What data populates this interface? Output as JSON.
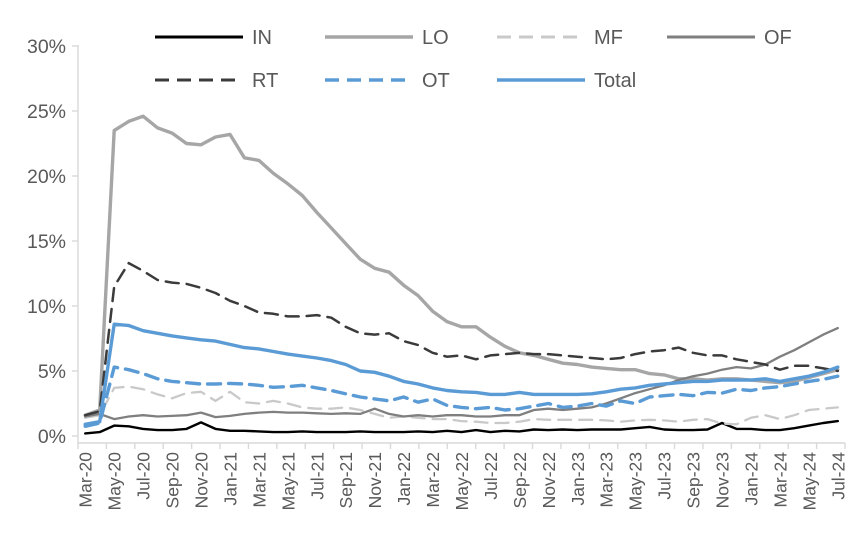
{
  "chart_data": {
    "type": "line",
    "title": "",
    "xlabel": "",
    "ylabel": "",
    "ylim": [
      0,
      30
    ],
    "grid": false,
    "legend_position": "top",
    "axis_color": "#d9d9d9",
    "label_color": "#595959",
    "y_ticks": [
      "0%",
      "5%",
      "10%",
      "15%",
      "20%",
      "25%",
      "30%"
    ],
    "y_tick_values": [
      0,
      5,
      10,
      15,
      20,
      25,
      30
    ],
    "x": [
      "Mar-20",
      "Apr-20",
      "May-20",
      "Jun-20",
      "Jul-20",
      "Aug-20",
      "Sep-20",
      "Oct-20",
      "Nov-20",
      "Dec-20",
      "Jan-21",
      "Feb-21",
      "Mar-21",
      "Apr-21",
      "May-21",
      "Jun-21",
      "Jul-21",
      "Aug-21",
      "Sep-21",
      "Oct-21",
      "Nov-21",
      "Dec-21",
      "Jan-22",
      "Feb-22",
      "Mar-22",
      "Apr-22",
      "May-22",
      "Jun-22",
      "Jul-22",
      "Aug-22",
      "Sep-22",
      "Oct-22",
      "Nov-22",
      "Dec-22",
      "Jan-23",
      "Feb-23",
      "Mar-23",
      "Apr-23",
      "May-23",
      "Jun-23",
      "Jul-23",
      "Aug-23",
      "Sep-23",
      "Oct-23",
      "Nov-23",
      "Dec-23",
      "Jan-24",
      "Feb-24",
      "Mar-24",
      "Apr-24",
      "May-24",
      "Jun-24",
      "Jul-24"
    ],
    "x_axis_labeled_ticks": [
      "Mar-20",
      "May-20",
      "Jul-20",
      "Sep-20",
      "Nov-20",
      "Jan-21",
      "Mar-21",
      "May-21",
      "Jul-21",
      "Sep-21",
      "Nov-21",
      "Jan-22",
      "Mar-22",
      "May-22",
      "Jul-22",
      "Sep-22",
      "Nov-22",
      "Jan-23",
      "Mar-23",
      "May-23",
      "Jul-23",
      "Sep-23",
      "Nov-23",
      "Jan-24",
      "Mar-24",
      "May-24",
      "Jul-24"
    ],
    "series": [
      {
        "name": "IN",
        "color": "#000000",
        "style": "solid",
        "width": 2.4,
        "values": [
          0.2,
          0.3,
          0.8,
          0.75,
          0.55,
          0.45,
          0.45,
          0.55,
          1.05,
          0.55,
          0.4,
          0.4,
          0.35,
          0.3,
          0.3,
          0.35,
          0.3,
          0.3,
          0.3,
          0.35,
          0.3,
          0.3,
          0.3,
          0.35,
          0.3,
          0.4,
          0.3,
          0.45,
          0.3,
          0.4,
          0.35,
          0.5,
          0.45,
          0.5,
          0.45,
          0.5,
          0.5,
          0.5,
          0.6,
          0.7,
          0.5,
          0.45,
          0.45,
          0.5,
          1.0,
          0.55,
          0.55,
          0.45,
          0.45,
          0.6,
          0.8,
          1.0,
          1.15
        ]
      },
      {
        "name": "LO",
        "color": "#a6a6a6",
        "style": "solid",
        "width": 3.4,
        "values": [
          1.6,
          2.0,
          23.5,
          24.2,
          24.6,
          23.7,
          23.3,
          22.5,
          22.4,
          23.0,
          23.2,
          21.4,
          21.2,
          20.2,
          19.4,
          18.5,
          17.2,
          16.0,
          14.8,
          13.6,
          12.9,
          12.6,
          11.6,
          10.8,
          9.6,
          8.8,
          8.4,
          8.4,
          7.6,
          6.9,
          6.4,
          6.2,
          5.9,
          5.6,
          5.5,
          5.3,
          5.2,
          5.1,
          5.1,
          4.8,
          4.7,
          4.4,
          4.4,
          4.3,
          4.4,
          4.4,
          4.3,
          4.2,
          4.1,
          4.2,
          4.5,
          4.8,
          5.1
        ]
      },
      {
        "name": "MF",
        "color": "#c9c9c9",
        "style": "dashed",
        "width": 2.3,
        "values": [
          1.4,
          1.6,
          3.7,
          3.8,
          3.6,
          3.2,
          2.9,
          3.3,
          3.4,
          2.7,
          3.4,
          2.6,
          2.5,
          2.7,
          2.5,
          2.2,
          2.1,
          2.1,
          2.2,
          2.0,
          1.7,
          1.4,
          1.5,
          1.4,
          1.3,
          1.3,
          1.15,
          1.1,
          1.0,
          1.0,
          1.1,
          1.3,
          1.25,
          1.25,
          1.25,
          1.25,
          1.2,
          1.1,
          1.2,
          1.25,
          1.2,
          1.1,
          1.25,
          1.3,
          0.95,
          0.9,
          1.4,
          1.6,
          1.3,
          1.6,
          2.0,
          2.1,
          2.2
        ]
      },
      {
        "name": "OF",
        "color": "#7f7f7f",
        "style": "solid",
        "width": 2.3,
        "values": [
          1.5,
          1.7,
          1.3,
          1.5,
          1.6,
          1.5,
          1.55,
          1.6,
          1.8,
          1.45,
          1.55,
          1.7,
          1.8,
          1.85,
          1.8,
          1.8,
          1.75,
          1.7,
          1.75,
          1.7,
          2.1,
          1.7,
          1.5,
          1.6,
          1.5,
          1.6,
          1.6,
          1.5,
          1.5,
          1.6,
          1.6,
          2.0,
          2.1,
          2.0,
          2.1,
          2.2,
          2.5,
          2.9,
          3.3,
          3.6,
          3.9,
          4.3,
          4.6,
          4.8,
          5.1,
          5.3,
          5.2,
          5.5,
          6.1,
          6.6,
          7.2,
          7.8,
          8.3
        ]
      },
      {
        "name": "RT",
        "color": "#3b3b3b",
        "style": "dashed",
        "width": 2.5,
        "values": [
          1.6,
          1.9,
          11.5,
          13.3,
          12.7,
          12.0,
          11.8,
          11.7,
          11.4,
          11.0,
          10.4,
          10.0,
          9.5,
          9.4,
          9.2,
          9.2,
          9.3,
          9.1,
          8.4,
          7.9,
          7.8,
          7.9,
          7.3,
          7.0,
          6.4,
          6.1,
          6.2,
          5.9,
          6.2,
          6.3,
          6.4,
          6.3,
          6.3,
          6.2,
          6.1,
          6.0,
          5.9,
          6.0,
          6.3,
          6.5,
          6.6,
          6.8,
          6.4,
          6.2,
          6.2,
          5.9,
          5.7,
          5.5,
          5.1,
          5.4,
          5.4,
          5.2,
          5.0
        ]
      },
      {
        "name": "OT",
        "color": "#5b9bd5",
        "style": "dashed",
        "width": 3.4,
        "values": [
          0.75,
          1.0,
          5.3,
          5.1,
          4.8,
          4.4,
          4.2,
          4.1,
          4.0,
          4.0,
          4.05,
          4.0,
          3.9,
          3.75,
          3.8,
          3.9,
          3.7,
          3.5,
          3.25,
          3.0,
          2.85,
          2.7,
          3.0,
          2.6,
          2.85,
          2.35,
          2.2,
          2.1,
          2.2,
          2.0,
          2.1,
          2.3,
          2.5,
          2.2,
          2.3,
          2.5,
          2.3,
          2.7,
          2.5,
          3.0,
          3.1,
          3.2,
          3.1,
          3.35,
          3.3,
          3.6,
          3.5,
          3.7,
          3.8,
          4.0,
          4.2,
          4.35,
          4.6
        ]
      },
      {
        "name": "Total",
        "color": "#5b9bd5",
        "style": "solid",
        "width": 3.4,
        "values": [
          0.9,
          1.1,
          8.6,
          8.5,
          8.1,
          7.9,
          7.7,
          7.55,
          7.4,
          7.3,
          7.05,
          6.8,
          6.7,
          6.5,
          6.3,
          6.15,
          6.0,
          5.8,
          5.5,
          5.0,
          4.9,
          4.6,
          4.2,
          4.0,
          3.7,
          3.5,
          3.4,
          3.35,
          3.2,
          3.2,
          3.35,
          3.2,
          3.2,
          3.2,
          3.2,
          3.25,
          3.4,
          3.6,
          3.7,
          3.9,
          4.0,
          4.1,
          4.2,
          4.2,
          4.3,
          4.3,
          4.3,
          4.4,
          4.2,
          4.4,
          4.6,
          4.9,
          5.3
        ]
      }
    ]
  },
  "legend": {
    "row1": [
      "IN",
      "LO",
      "MF",
      "OF"
    ],
    "row2": [
      "RT",
      "OT",
      "Total"
    ]
  }
}
